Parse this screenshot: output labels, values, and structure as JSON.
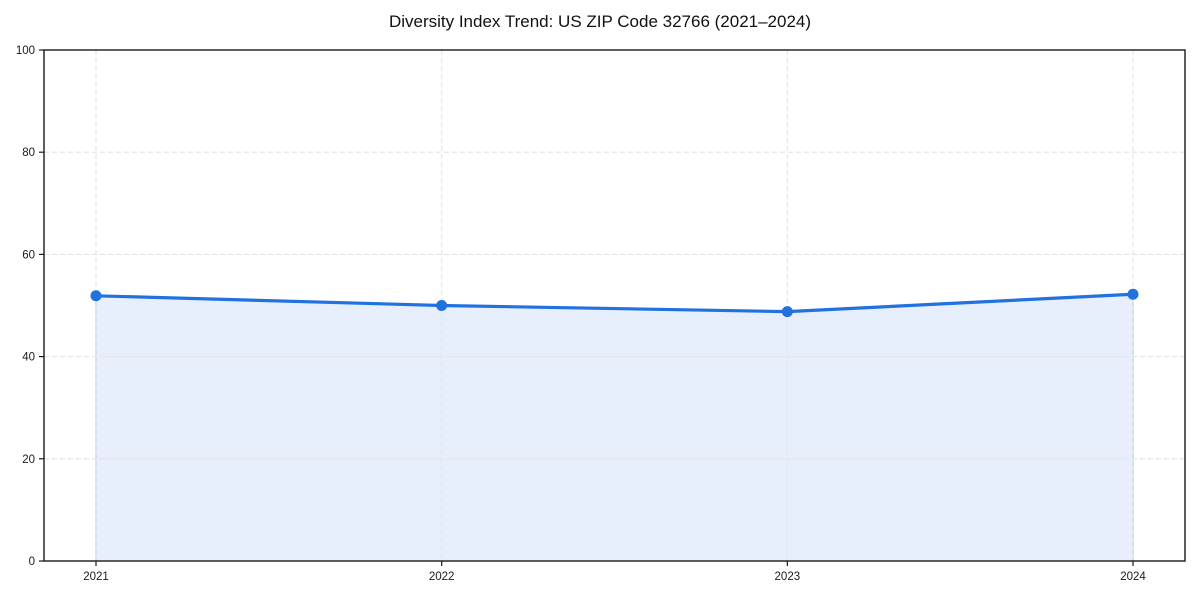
{
  "chart_data": {
    "type": "area",
    "title": "Diversity Index Trend: US ZIP Code 32766 (2021–2024)",
    "categories": [
      "2021",
      "2022",
      "2023",
      "2024"
    ],
    "series": [
      {
        "name": "Diversity Index",
        "values": [
          51.9,
          50.0,
          48.8,
          52.2
        ]
      }
    ],
    "xlabel": "",
    "ylabel": "",
    "ylim": [
      0,
      100
    ],
    "yticks": [
      0,
      20,
      40,
      60,
      80,
      100
    ],
    "grid": {
      "style": "dashed",
      "horizontal": true,
      "vertical": true
    },
    "legend": "none",
    "marker": "circle",
    "colors": {
      "line": "#2171E0",
      "marker": "#2171E0",
      "fill": "#E7EFFC",
      "area_edge": "#BED6F5",
      "grid": "#E4E4E4",
      "axis": "#1A1A1A",
      "tick_label": "#1A1A1A",
      "title": "#111111",
      "background": "#FFFFFF"
    }
  }
}
